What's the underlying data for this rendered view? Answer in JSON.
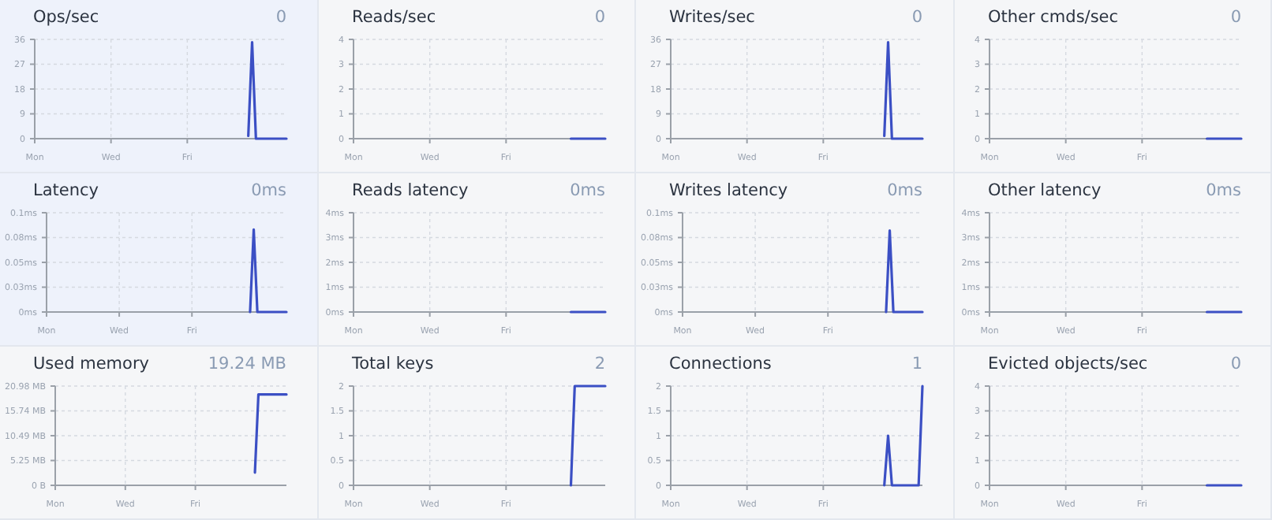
{
  "chart_data": [
    {
      "type": "line",
      "title": "Ops/sec",
      "subtitle": "0",
      "categories": [
        "Mon",
        null,
        null,
        null,
        null,
        null,
        null,
        null,
        null,
        null,
        null,
        null,
        null,
        null,
        null,
        null,
        null,
        null,
        null,
        null,
        "Wed",
        null,
        null,
        null,
        null,
        null,
        null,
        null,
        null,
        null,
        null,
        null,
        null,
        null,
        null,
        null,
        null,
        null,
        null,
        null,
        "Fri",
        null,
        null,
        null,
        null,
        null,
        null,
        null,
        null,
        null,
        null,
        null,
        null,
        null,
        null,
        null,
        null,
        null,
        null,
        null,
        null,
        null,
        null,
        null,
        null,
        null,
        null
      ],
      "values": [
        null,
        null,
        null,
        null,
        null,
        null,
        null,
        null,
        null,
        null,
        null,
        null,
        null,
        null,
        null,
        null,
        null,
        null,
        null,
        null,
        null,
        null,
        null,
        null,
        null,
        null,
        null,
        null,
        null,
        null,
        null,
        null,
        null,
        null,
        null,
        null,
        null,
        null,
        null,
        null,
        null,
        null,
        null,
        null,
        null,
        null,
        null,
        null,
        null,
        null,
        null,
        null,
        null,
        null,
        null,
        null,
        1,
        35,
        0,
        0,
        0,
        0,
        0,
        0,
        0,
        0,
        0
      ],
      "color": "#3b4fc4",
      "ylim": [
        0,
        36
      ],
      "yticks": [
        0,
        9,
        18,
        27,
        36
      ],
      "grid": true
    },
    {
      "type": "line",
      "title": "Reads/sec",
      "subtitle": "0",
      "categories": [
        "Mon",
        null,
        null,
        null,
        null,
        null,
        null,
        null,
        null,
        null,
        null,
        null,
        null,
        null,
        null,
        null,
        null,
        null,
        null,
        null,
        "Wed",
        null,
        null,
        null,
        null,
        null,
        null,
        null,
        null,
        null,
        null,
        null,
        null,
        null,
        null,
        null,
        null,
        null,
        null,
        null,
        "Fri",
        null,
        null,
        null,
        null,
        null,
        null,
        null,
        null,
        null,
        null,
        null,
        null,
        null,
        null,
        null,
        null,
        null,
        null,
        null,
        null,
        null,
        null,
        null,
        null,
        null,
        null
      ],
      "values": [
        null,
        null,
        null,
        null,
        null,
        null,
        null,
        null,
        null,
        null,
        null,
        null,
        null,
        null,
        null,
        null,
        null,
        null,
        null,
        null,
        null,
        null,
        null,
        null,
        null,
        null,
        null,
        null,
        null,
        null,
        null,
        null,
        null,
        null,
        null,
        null,
        null,
        null,
        null,
        null,
        null,
        null,
        null,
        null,
        null,
        null,
        null,
        null,
        null,
        null,
        null,
        null,
        null,
        null,
        null,
        null,
        null,
        0,
        0,
        0,
        0,
        0,
        0,
        0,
        0,
        0,
        0
      ],
      "color": "#3b4fc4",
      "ylim": [
        0,
        4
      ],
      "yticks": [
        0,
        1,
        2,
        3,
        4
      ],
      "grid": true
    },
    {
      "type": "line",
      "title": "Writes/sec",
      "subtitle": "0",
      "categories": [
        "Mon",
        null,
        null,
        null,
        null,
        null,
        null,
        null,
        null,
        null,
        null,
        null,
        null,
        null,
        null,
        null,
        null,
        null,
        null,
        null,
        "Wed",
        null,
        null,
        null,
        null,
        null,
        null,
        null,
        null,
        null,
        null,
        null,
        null,
        null,
        null,
        null,
        null,
        null,
        null,
        null,
        "Fri",
        null,
        null,
        null,
        null,
        null,
        null,
        null,
        null,
        null,
        null,
        null,
        null,
        null,
        null,
        null,
        null,
        null,
        null,
        null,
        null,
        null,
        null,
        null,
        null,
        null,
        null
      ],
      "values": [
        null,
        null,
        null,
        null,
        null,
        null,
        null,
        null,
        null,
        null,
        null,
        null,
        null,
        null,
        null,
        null,
        null,
        null,
        null,
        null,
        null,
        null,
        null,
        null,
        null,
        null,
        null,
        null,
        null,
        null,
        null,
        null,
        null,
        null,
        null,
        null,
        null,
        null,
        null,
        null,
        null,
        null,
        null,
        null,
        null,
        null,
        null,
        null,
        null,
        null,
        null,
        null,
        null,
        null,
        null,
        null,
        1,
        35,
        0,
        0,
        0,
        0,
        0,
        0,
        0,
        0,
        0
      ],
      "color": "#3b4fc4",
      "ylim": [
        0,
        36
      ],
      "yticks": [
        0,
        9,
        18,
        27,
        36
      ],
      "grid": true
    },
    {
      "type": "line",
      "title": "Other cmds/sec",
      "subtitle": "0",
      "categories": [
        "Mon",
        null,
        null,
        null,
        null,
        null,
        null,
        null,
        null,
        null,
        null,
        null,
        null,
        null,
        null,
        null,
        null,
        null,
        null,
        null,
        "Wed",
        null,
        null,
        null,
        null,
        null,
        null,
        null,
        null,
        null,
        null,
        null,
        null,
        null,
        null,
        null,
        null,
        null,
        null,
        null,
        "Fri",
        null,
        null,
        null,
        null,
        null,
        null,
        null,
        null,
        null,
        null,
        null,
        null,
        null,
        null,
        null,
        null,
        null,
        null,
        null,
        null,
        null,
        null,
        null,
        null,
        null,
        null
      ],
      "values": [
        null,
        null,
        null,
        null,
        null,
        null,
        null,
        null,
        null,
        null,
        null,
        null,
        null,
        null,
        null,
        null,
        null,
        null,
        null,
        null,
        null,
        null,
        null,
        null,
        null,
        null,
        null,
        null,
        null,
        null,
        null,
        null,
        null,
        null,
        null,
        null,
        null,
        null,
        null,
        null,
        null,
        null,
        null,
        null,
        null,
        null,
        null,
        null,
        null,
        null,
        null,
        null,
        null,
        null,
        null,
        null,
        null,
        0,
        0,
        0,
        0,
        0,
        0,
        0,
        0,
        0,
        0
      ],
      "color": "#3b4fc4",
      "ylim": [
        0,
        4
      ],
      "yticks": [
        0,
        1,
        2,
        3,
        4
      ],
      "grid": true
    },
    {
      "type": "line",
      "title": "Latency",
      "subtitle": "0ms",
      "categories": [
        "Mon",
        null,
        null,
        null,
        null,
        null,
        null,
        null,
        null,
        null,
        null,
        null,
        null,
        null,
        null,
        null,
        null,
        null,
        null,
        null,
        "Wed",
        null,
        null,
        null,
        null,
        null,
        null,
        null,
        null,
        null,
        null,
        null,
        null,
        null,
        null,
        null,
        null,
        null,
        null,
        null,
        "Fri",
        null,
        null,
        null,
        null,
        null,
        null,
        null,
        null,
        null,
        null,
        null,
        null,
        null,
        null,
        null,
        null,
        null,
        null,
        null,
        null,
        null,
        null,
        null,
        null,
        null,
        null
      ],
      "values": [
        null,
        null,
        null,
        null,
        null,
        null,
        null,
        null,
        null,
        null,
        null,
        null,
        null,
        null,
        null,
        null,
        null,
        null,
        null,
        null,
        null,
        null,
        null,
        null,
        null,
        null,
        null,
        null,
        null,
        null,
        null,
        null,
        null,
        null,
        null,
        null,
        null,
        null,
        null,
        null,
        null,
        null,
        null,
        null,
        null,
        null,
        null,
        null,
        null,
        null,
        null,
        null,
        null,
        null,
        null,
        null,
        0,
        0.083,
        0,
        0,
        0,
        0,
        0,
        0,
        0,
        0,
        0
      ],
      "color": "#3b4fc4",
      "ylim": [
        0,
        0.1
      ],
      "yticks": [
        {
          "value": 0,
          "label": "0ms"
        },
        {
          "value": 0.025,
          "label": "0.03ms"
        },
        {
          "value": 0.05,
          "label": "0.05ms"
        },
        {
          "value": 0.075,
          "label": "0.08ms"
        },
        {
          "value": 0.1,
          "label": "0.1ms"
        }
      ],
      "grid": true
    },
    {
      "type": "line",
      "title": "Reads latency",
      "subtitle": "0ms",
      "categories": [
        "Mon",
        null,
        null,
        null,
        null,
        null,
        null,
        null,
        null,
        null,
        null,
        null,
        null,
        null,
        null,
        null,
        null,
        null,
        null,
        null,
        "Wed",
        null,
        null,
        null,
        null,
        null,
        null,
        null,
        null,
        null,
        null,
        null,
        null,
        null,
        null,
        null,
        null,
        null,
        null,
        null,
        "Fri",
        null,
        null,
        null,
        null,
        null,
        null,
        null,
        null,
        null,
        null,
        null,
        null,
        null,
        null,
        null,
        null,
        null,
        null,
        null,
        null,
        null,
        null,
        null,
        null,
        null,
        null
      ],
      "values": [
        null,
        null,
        null,
        null,
        null,
        null,
        null,
        null,
        null,
        null,
        null,
        null,
        null,
        null,
        null,
        null,
        null,
        null,
        null,
        null,
        null,
        null,
        null,
        null,
        null,
        null,
        null,
        null,
        null,
        null,
        null,
        null,
        null,
        null,
        null,
        null,
        null,
        null,
        null,
        null,
        null,
        null,
        null,
        null,
        null,
        null,
        null,
        null,
        null,
        null,
        null,
        null,
        null,
        null,
        null,
        null,
        null,
        0,
        0,
        0,
        0,
        0,
        0,
        0,
        0,
        0,
        0
      ],
      "color": "#3b4fc4",
      "ylim": [
        0,
        4
      ],
      "yticks": [
        {
          "value": 0,
          "label": "0ms"
        },
        {
          "value": 1,
          "label": "1ms"
        },
        {
          "value": 2,
          "label": "2ms"
        },
        {
          "value": 3,
          "label": "3ms"
        },
        {
          "value": 4,
          "label": "4ms"
        }
      ],
      "grid": true
    },
    {
      "type": "line",
      "title": "Writes latency",
      "subtitle": "0ms",
      "categories": [
        "Mon",
        null,
        null,
        null,
        null,
        null,
        null,
        null,
        null,
        null,
        null,
        null,
        null,
        null,
        null,
        null,
        null,
        null,
        null,
        null,
        "Wed",
        null,
        null,
        null,
        null,
        null,
        null,
        null,
        null,
        null,
        null,
        null,
        null,
        null,
        null,
        null,
        null,
        null,
        null,
        null,
        "Fri",
        null,
        null,
        null,
        null,
        null,
        null,
        null,
        null,
        null,
        null,
        null,
        null,
        null,
        null,
        null,
        null,
        null,
        null,
        null,
        null,
        null,
        null,
        null,
        null,
        null,
        null
      ],
      "values": [
        null,
        null,
        null,
        null,
        null,
        null,
        null,
        null,
        null,
        null,
        null,
        null,
        null,
        null,
        null,
        null,
        null,
        null,
        null,
        null,
        null,
        null,
        null,
        null,
        null,
        null,
        null,
        null,
        null,
        null,
        null,
        null,
        null,
        null,
        null,
        null,
        null,
        null,
        null,
        null,
        null,
        null,
        null,
        null,
        null,
        null,
        null,
        null,
        null,
        null,
        null,
        null,
        null,
        null,
        null,
        null,
        0,
        0.082,
        0,
        0,
        0,
        0,
        0,
        0,
        0,
        0,
        0
      ],
      "color": "#3b4fc4",
      "ylim": [
        0,
        0.1
      ],
      "yticks": [
        {
          "value": 0,
          "label": "0ms"
        },
        {
          "value": 0.025,
          "label": "0.03ms"
        },
        {
          "value": 0.05,
          "label": "0.05ms"
        },
        {
          "value": 0.075,
          "label": "0.08ms"
        },
        {
          "value": 0.1,
          "label": "0.1ms"
        }
      ],
      "grid": true
    },
    {
      "type": "line",
      "title": "Other latency",
      "subtitle": "0ms",
      "categories": [
        "Mon",
        null,
        null,
        null,
        null,
        null,
        null,
        null,
        null,
        null,
        null,
        null,
        null,
        null,
        null,
        null,
        null,
        null,
        null,
        null,
        "Wed",
        null,
        null,
        null,
        null,
        null,
        null,
        null,
        null,
        null,
        null,
        null,
        null,
        null,
        null,
        null,
        null,
        null,
        null,
        null,
        "Fri",
        null,
        null,
        null,
        null,
        null,
        null,
        null,
        null,
        null,
        null,
        null,
        null,
        null,
        null,
        null,
        null,
        null,
        null,
        null,
        null,
        null,
        null,
        null,
        null,
        null,
        null
      ],
      "values": [
        null,
        null,
        null,
        null,
        null,
        null,
        null,
        null,
        null,
        null,
        null,
        null,
        null,
        null,
        null,
        null,
        null,
        null,
        null,
        null,
        null,
        null,
        null,
        null,
        null,
        null,
        null,
        null,
        null,
        null,
        null,
        null,
        null,
        null,
        null,
        null,
        null,
        null,
        null,
        null,
        null,
        null,
        null,
        null,
        null,
        null,
        null,
        null,
        null,
        null,
        null,
        null,
        null,
        null,
        null,
        null,
        null,
        0,
        0,
        0,
        0,
        0,
        0,
        0,
        0,
        0,
        0
      ],
      "color": "#3b4fc4",
      "ylim": [
        0,
        4
      ],
      "yticks": [
        {
          "value": 0,
          "label": "0ms"
        },
        {
          "value": 1,
          "label": "1ms"
        },
        {
          "value": 2,
          "label": "2ms"
        },
        {
          "value": 3,
          "label": "3ms"
        },
        {
          "value": 4,
          "label": "4ms"
        }
      ],
      "grid": true
    },
    {
      "type": "line",
      "title": "Used memory",
      "subtitle": "19.24 MB",
      "categories": [
        "Mon",
        null,
        null,
        null,
        null,
        null,
        null,
        null,
        null,
        null,
        null,
        null,
        null,
        null,
        null,
        null,
        null,
        null,
        null,
        null,
        "Wed",
        null,
        null,
        null,
        null,
        null,
        null,
        null,
        null,
        null,
        null,
        null,
        null,
        null,
        null,
        null,
        null,
        null,
        null,
        null,
        "Fri",
        null,
        null,
        null,
        null,
        null,
        null,
        null,
        null,
        null,
        null,
        null,
        null,
        null,
        null,
        null,
        null,
        null,
        null,
        null,
        null,
        null,
        null,
        null,
        null,
        null,
        null
      ],
      "values": [
        null,
        null,
        null,
        null,
        null,
        null,
        null,
        null,
        null,
        null,
        null,
        null,
        null,
        null,
        null,
        null,
        null,
        null,
        null,
        null,
        null,
        null,
        null,
        null,
        null,
        null,
        null,
        null,
        null,
        null,
        null,
        null,
        null,
        null,
        null,
        null,
        null,
        null,
        null,
        null,
        null,
        null,
        null,
        null,
        null,
        null,
        null,
        null,
        null,
        null,
        null,
        null,
        null,
        null,
        null,
        null,
        null,
        2.7,
        19.2,
        19.2,
        19.2,
        19.2,
        19.2,
        19.2,
        19.2,
        19.2,
        19.2
      ],
      "color": "#3b4fc4",
      "ylim": [
        0,
        20.98
      ],
      "yticks": [
        {
          "value": 0,
          "label": "0 B"
        },
        {
          "value": 5.245,
          "label": "5.25 MB"
        },
        {
          "value": 10.49,
          "label": "10.49 MB"
        },
        {
          "value": 15.735,
          "label": "15.74 MB"
        },
        {
          "value": 20.98,
          "label": "20.98 MB"
        }
      ],
      "grid": true
    },
    {
      "type": "line",
      "title": "Total keys",
      "subtitle": "2",
      "categories": [
        "Mon",
        null,
        null,
        null,
        null,
        null,
        null,
        null,
        null,
        null,
        null,
        null,
        null,
        null,
        null,
        null,
        null,
        null,
        null,
        null,
        "Wed",
        null,
        null,
        null,
        null,
        null,
        null,
        null,
        null,
        null,
        null,
        null,
        null,
        null,
        null,
        null,
        null,
        null,
        null,
        null,
        "Fri",
        null,
        null,
        null,
        null,
        null,
        null,
        null,
        null,
        null,
        null,
        null,
        null,
        null,
        null,
        null,
        null,
        null,
        null,
        null,
        null,
        null,
        null,
        null,
        null,
        null,
        null
      ],
      "values": [
        null,
        null,
        null,
        null,
        null,
        null,
        null,
        null,
        null,
        null,
        null,
        null,
        null,
        null,
        null,
        null,
        null,
        null,
        null,
        null,
        null,
        null,
        null,
        null,
        null,
        null,
        null,
        null,
        null,
        null,
        null,
        null,
        null,
        null,
        null,
        null,
        null,
        null,
        null,
        null,
        null,
        null,
        null,
        null,
        null,
        null,
        null,
        null,
        null,
        null,
        null,
        null,
        null,
        null,
        null,
        null,
        null,
        0,
        2,
        2,
        2,
        2,
        2,
        2,
        2,
        2,
        2
      ],
      "color": "#3b4fc4",
      "ylim": [
        0,
        2
      ],
      "yticks": [
        0,
        0.5,
        1,
        1.5,
        2
      ],
      "grid": true
    },
    {
      "type": "line",
      "title": "Connections",
      "subtitle": "1",
      "categories": [
        "Mon",
        null,
        null,
        null,
        null,
        null,
        null,
        null,
        null,
        null,
        null,
        null,
        null,
        null,
        null,
        null,
        null,
        null,
        null,
        null,
        "Wed",
        null,
        null,
        null,
        null,
        null,
        null,
        null,
        null,
        null,
        null,
        null,
        null,
        null,
        null,
        null,
        null,
        null,
        null,
        null,
        "Fri",
        null,
        null,
        null,
        null,
        null,
        null,
        null,
        null,
        null,
        null,
        null,
        null,
        null,
        null,
        null,
        null,
        null,
        null,
        null,
        null,
        null,
        null,
        null,
        null,
        null,
        null
      ],
      "values": [
        null,
        null,
        null,
        null,
        null,
        null,
        null,
        null,
        null,
        null,
        null,
        null,
        null,
        null,
        null,
        null,
        null,
        null,
        null,
        null,
        null,
        null,
        null,
        null,
        null,
        null,
        null,
        null,
        null,
        null,
        null,
        null,
        null,
        null,
        null,
        null,
        null,
        null,
        null,
        null,
        null,
        null,
        null,
        null,
        null,
        null,
        null,
        null,
        null,
        null,
        null,
        null,
        null,
        null,
        null,
        null,
        0,
        1,
        0,
        0,
        0,
        0,
        0,
        0,
        0,
        0,
        2
      ],
      "color": "#3b4fc4",
      "ylim": [
        0,
        2
      ],
      "yticks": [
        0,
        0.5,
        1,
        1.5,
        2
      ],
      "grid": true
    },
    {
      "type": "line",
      "title": "Evicted objects/sec",
      "subtitle": "0",
      "categories": [
        "Mon",
        null,
        null,
        null,
        null,
        null,
        null,
        null,
        null,
        null,
        null,
        null,
        null,
        null,
        null,
        null,
        null,
        null,
        null,
        null,
        "Wed",
        null,
        null,
        null,
        null,
        null,
        null,
        null,
        null,
        null,
        null,
        null,
        null,
        null,
        null,
        null,
        null,
        null,
        null,
        null,
        "Fri",
        null,
        null,
        null,
        null,
        null,
        null,
        null,
        null,
        null,
        null,
        null,
        null,
        null,
        null,
        null,
        null,
        null,
        null,
        null,
        null,
        null,
        null,
        null,
        null,
        null,
        null
      ],
      "values": [
        null,
        null,
        null,
        null,
        null,
        null,
        null,
        null,
        null,
        null,
        null,
        null,
        null,
        null,
        null,
        null,
        null,
        null,
        null,
        null,
        null,
        null,
        null,
        null,
        null,
        null,
        null,
        null,
        null,
        null,
        null,
        null,
        null,
        null,
        null,
        null,
        null,
        null,
        null,
        null,
        null,
        null,
        null,
        null,
        null,
        null,
        null,
        null,
        null,
        null,
        null,
        null,
        null,
        null,
        null,
        null,
        null,
        0,
        0,
        0,
        0,
        0,
        0,
        0,
        0,
        0,
        0
      ],
      "color": "#3b4fc4",
      "ylim": [
        0,
        4
      ],
      "yticks": [
        0,
        1,
        2,
        3,
        4
      ],
      "grid": true
    }
  ]
}
